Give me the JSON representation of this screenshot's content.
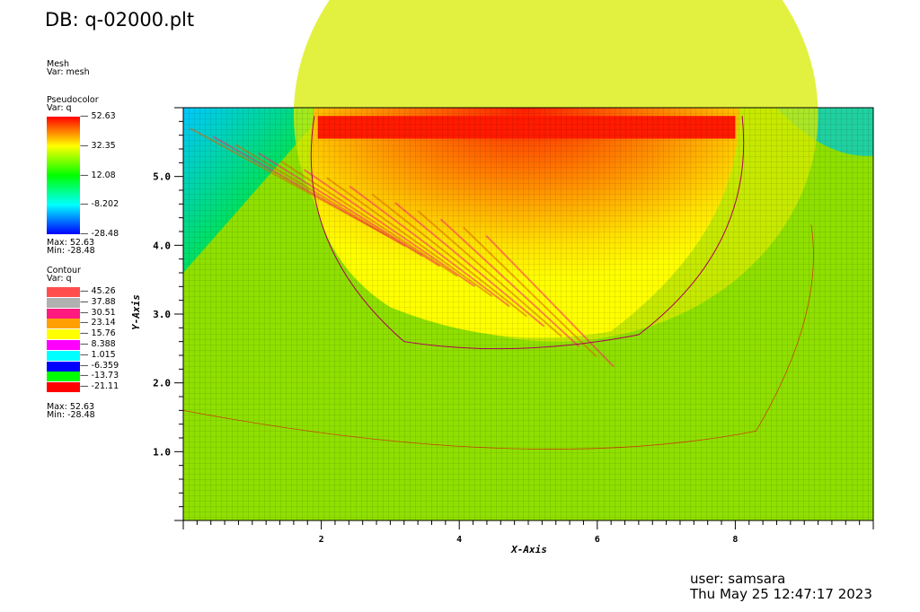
{
  "title": "DB: q-02000.plt",
  "mesh_legend": {
    "header": "Mesh",
    "var": "Var: mesh"
  },
  "pseudocolor_legend": {
    "header": "Pseudocolor",
    "var": "Var: q",
    "ticks": [
      "52.63",
      "32.35",
      "12.08",
      "-8.202",
      "-28.48"
    ],
    "max": "Max:  52.63",
    "min": "Min: -28.48"
  },
  "contour_legend": {
    "header": "Contour",
    "var": "Var: q",
    "levels": [
      {
        "label": "45.26",
        "color": "#ff4d4d"
      },
      {
        "label": "37.88",
        "color": "#b0b0b0"
      },
      {
        "label": "30.51",
        "color": "#ff1a80"
      },
      {
        "label": "23.14",
        "color": "#ffa000"
      },
      {
        "label": "15.76",
        "color": "#ffff00"
      },
      {
        "label": "8.388",
        "color": "#ff00ff"
      },
      {
        "label": "1.015",
        "color": "#00ffff"
      },
      {
        "label": "-6.359",
        "color": "#0000ff"
      },
      {
        "label": "-13.73",
        "color": "#00ff00"
      },
      {
        "label": "-21.11",
        "color": "#ff0000"
      }
    ],
    "max": "Max:  52.63",
    "min": "Min: -28.48"
  },
  "user": "user: samsara",
  "timestamp": "Thu May 25 12:47:17 2023",
  "chart_data": {
    "type": "heatmap",
    "xlabel": "X-Axis",
    "ylabel": "Y-Axis",
    "xlim": [
      0,
      10
    ],
    "ylim": [
      0,
      6
    ],
    "x_ticks": [
      2,
      4,
      6,
      8
    ],
    "x_tick_labels": [
      "2",
      "4",
      "6",
      "8"
    ],
    "y_ticks": [
      1,
      2,
      3,
      4,
      5
    ],
    "y_tick_labels": [
      "1.0",
      "2.0",
      "3.0",
      "4.0",
      "5.0"
    ],
    "variable": "q",
    "value_range": [
      -28.48,
      52.63
    ],
    "colormap": [
      "#ff0000",
      "#ffff00",
      "#00ff00",
      "#00ffff",
      "#0000ff"
    ],
    "grid": true
  }
}
